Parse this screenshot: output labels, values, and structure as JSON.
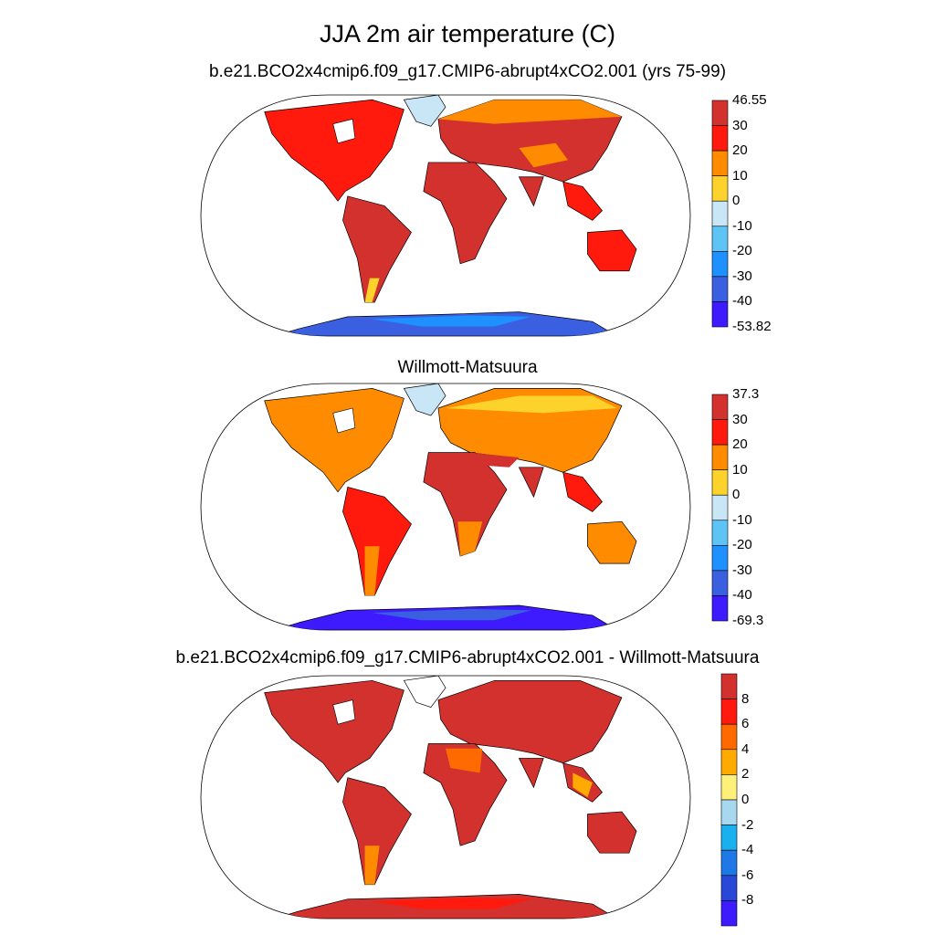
{
  "title": "JJA 2m air temperature (C)",
  "panels": [
    {
      "title": "b.e21.BCO2x4cmip6.f09_g17.CMIP6-abrupt4xCO2.001 (yrs 75-99)",
      "colorbar": {
        "labels": [
          "46.55",
          "30",
          "20",
          "10",
          "0",
          "-10",
          "-20",
          "-30",
          "-40",
          "-53.82"
        ],
        "colors": [
          "#d2312e",
          "#ff1a0d",
          "#ff8c00",
          "#fdd22a",
          "#c8e6f5",
          "#5ec4f5",
          "#1e90ff",
          "#3a5fe0",
          "#3e1aff"
        ]
      }
    },
    {
      "title": "Willmott-Matsuura",
      "colorbar": {
        "labels": [
          "37.3",
          "30",
          "20",
          "10",
          "0",
          "-10",
          "-20",
          "-30",
          "-40",
          "-69.3"
        ],
        "colors": [
          "#d2312e",
          "#ff1a0d",
          "#ff8c00",
          "#fdd22a",
          "#c8e6f5",
          "#5ec4f5",
          "#1e90ff",
          "#3a5fe0",
          "#3e1aff"
        ]
      }
    },
    {
      "title": "b.e21.BCO2x4cmip6.f09_g17.CMIP6-abrupt4xCO2.001 - Willmott-Matsuura",
      "colorbar": {
        "labels": [
          "8",
          "6",
          "4",
          "2",
          "0",
          "-2",
          "-4",
          "-6",
          "-8"
        ],
        "colors": [
          "#d2312e",
          "#ff1a0d",
          "#ff6a00",
          "#ffaa00",
          "#fff07a",
          "#a8d8f0",
          "#1ab0f0",
          "#1e78e6",
          "#2a48d8",
          "#3e1aff"
        ]
      }
    }
  ]
}
